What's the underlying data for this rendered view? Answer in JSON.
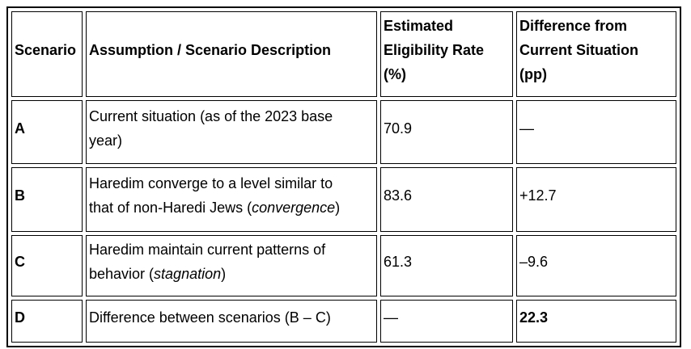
{
  "window": {
    "background_color": "#ffffff",
    "border_color": "#000000",
    "text_color": "#000000"
  },
  "table": {
    "headers": {
      "scenario": "Scenario",
      "description": "Assumption / Scenario Description",
      "rate": "Estimated\nEligibility Rate\n(%)",
      "difference": "Difference from\nCurrent Situation\n(pp)"
    },
    "rows": [
      {
        "scenario": "A",
        "desc_prefix": "Current situation (as of the 2023 base\nyear)",
        "desc_italic": "",
        "desc_suffix": "",
        "rate": "70.9",
        "difference": "—"
      },
      {
        "scenario": "B",
        "desc_prefix": "Haredim converge to a level similar to\nthat of non-Haredi Jews (",
        "desc_italic": "convergence",
        "desc_suffix": ")",
        "rate": "83.6",
        "difference": "+12.7"
      },
      {
        "scenario": "C",
        "desc_prefix": "Haredim maintain current patterns of\nbehavior (",
        "desc_italic": "stagnation",
        "desc_suffix": ")",
        "rate": "61.3",
        "difference": "–9.6"
      },
      {
        "scenario": "D",
        "desc_prefix": "Difference between scenarios (B – C)",
        "desc_italic": "",
        "desc_suffix": "",
        "rate": "—",
        "difference": "22.3"
      }
    ]
  }
}
